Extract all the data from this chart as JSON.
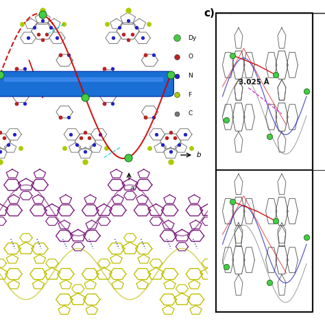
{
  "bg_color": "#ffffff",
  "label_c": "c)",
  "annotation_text": "3.025 Å",
  "legend_items": [
    {
      "label": "Dy",
      "color": "#44cc44"
    },
    {
      "label": "O",
      "color": "#cc0000"
    },
    {
      "label": "N",
      "color": "#2222cc"
    },
    {
      "label": "F",
      "color": "#bbbb00"
    },
    {
      "label": "C",
      "color": "#888888"
    }
  ],
  "tube_color": "#1a6fd4",
  "chain_wave_color": "#cc0000",
  "layer_purple": "#7b1a7b",
  "layer_yellow": "#bfbf00",
  "box_color": "#111111",
  "axis_a_label": "a",
  "axis_b_label": "b",
  "panel_a_rings_gray": "#777777",
  "panel_a_rings_blue": "#0000bb",
  "panel_a_rings_red": "#cc0000",
  "panel_a_Dy_color": "#44cc44",
  "panel_a_F_color": "#aacc00",
  "panel_a_N_color": "#2222cc",
  "panel_a_O_color": "#bb2222",
  "panel_a_cyan_color": "#00cccc",
  "panel_c_annot_color": "#111111",
  "panel_c_pink_dash": "#cc44cc"
}
